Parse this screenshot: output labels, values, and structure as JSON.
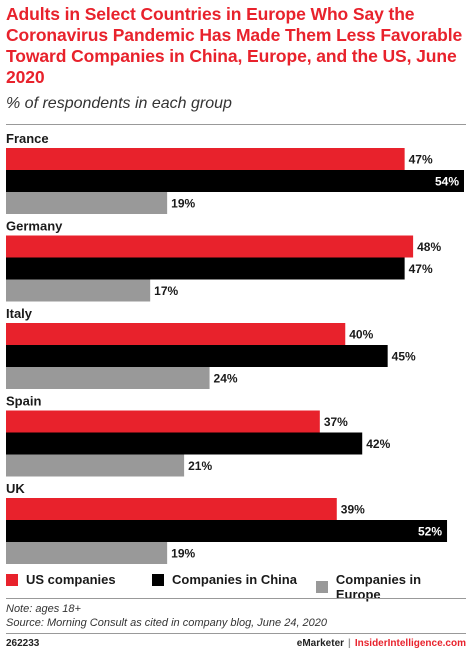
{
  "header": {
    "title": "Adults in Select Countries in Europe Who Say the Coronavirus Pandemic Has Made Them Less Favorable Toward Companies in China, Europe, and the US, June 2020",
    "subtitle": "% of respondents in each group"
  },
  "colors": {
    "us": "#e8222c",
    "china": "#000000",
    "europe": "#999999"
  },
  "chart_data": {
    "type": "bar",
    "orientation": "horizontal",
    "categories": [
      "France",
      "Germany",
      "Italy",
      "Spain",
      "UK"
    ],
    "series": [
      {
        "name": "US companies",
        "values": [
          47,
          48,
          40,
          37,
          39
        ]
      },
      {
        "name": "Companies in China",
        "values": [
          54,
          47,
          45,
          42,
          52
        ]
      },
      {
        "name": "Companies in Europe",
        "values": [
          19,
          17,
          24,
          21,
          19
        ]
      }
    ],
    "value_suffix": "%",
    "xlim": [
      0,
      54
    ],
    "grid": false,
    "legend_position": "bottom"
  },
  "legend": {
    "us": "US companies",
    "china": "Companies in China",
    "europe": "Companies in Europe"
  },
  "notes": {
    "note": "Note: ages 18+",
    "source": "Source: Morning Consult as cited in company blog, June 24, 2020"
  },
  "footer": {
    "id": "262233",
    "brand_a": "eMarketer",
    "separator": "|",
    "brand_b": "InsiderIntelligence.com"
  }
}
